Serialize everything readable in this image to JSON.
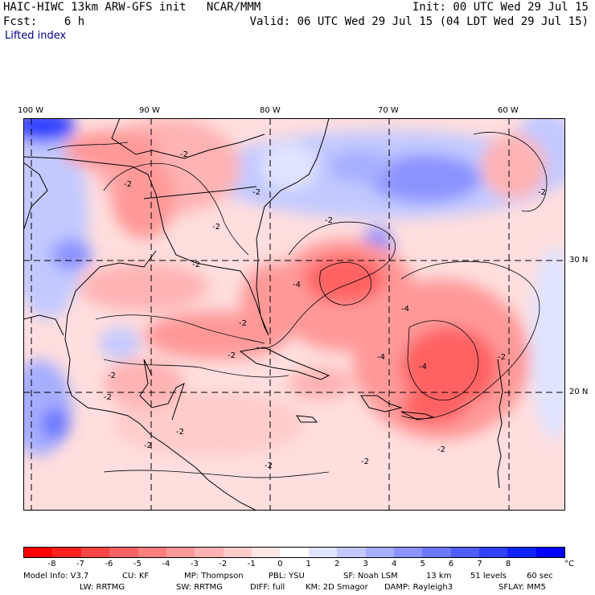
{
  "header": {
    "title": "HAIC-HIWC 13km ARW-GFS init   NCAR/MMM",
    "fcst": "Fcst:    6 h",
    "field": "Lifted index",
    "init": "Init: 00 UTC Wed 29 Jul 15",
    "valid": "Valid: 06 UTC Wed 29 Jul 15 (04 LDT Wed 29 Jul 15)"
  },
  "axes": {
    "lon_labels": [
      "100 W",
      "90 W",
      "80 W",
      "70 W",
      "60 W"
    ],
    "lat_labels": [
      "30 N",
      "20 N"
    ]
  },
  "map": {
    "contour_labels": [
      "-2",
      "-2",
      "-2",
      "-2",
      "-2",
      "-2",
      "-2",
      "-2",
      "-2",
      "-2",
      "-2",
      "-2",
      "-2",
      "-2",
      "-4",
      "-4",
      "-4",
      "-4",
      "-2",
      "-2",
      "-2"
    ]
  },
  "colorbar": {
    "unit": "°C",
    "labels": [
      "-8",
      "-7",
      "-6",
      "-5",
      "-4",
      "-3",
      "-2",
      "-1",
      "0",
      "1",
      "2",
      "3",
      "4",
      "5",
      "6",
      "7",
      "8"
    ],
    "colors": [
      "#ff0000",
      "#ff2020",
      "#ff4545",
      "#ff6262",
      "#ff7e7e",
      "#ff9999",
      "#ffb3b3",
      "#ffcccc",
      "#ffe6e6",
      "#ffffff",
      "#e0e4ff",
      "#c3c9ff",
      "#a6aeff",
      "#8a93ff",
      "#6d78ff",
      "#505dff",
      "#3042ff",
      "#1023ff",
      "#0000ff"
    ]
  },
  "model_info": {
    "line1": [
      "Model Info: V3.7",
      "CU: KF",
      "MP: Thompson",
      "PBL: YSU",
      "SF: Noah LSM",
      "13 km",
      "51 levels",
      "60 sec"
    ],
    "line2": [
      "LW: RRTMG",
      "SW: RRTMG",
      "DIFF: full",
      "KM: 2D Smagor",
      "DAMP: Rayleigh3",
      "SFLAY: MM5"
    ]
  }
}
